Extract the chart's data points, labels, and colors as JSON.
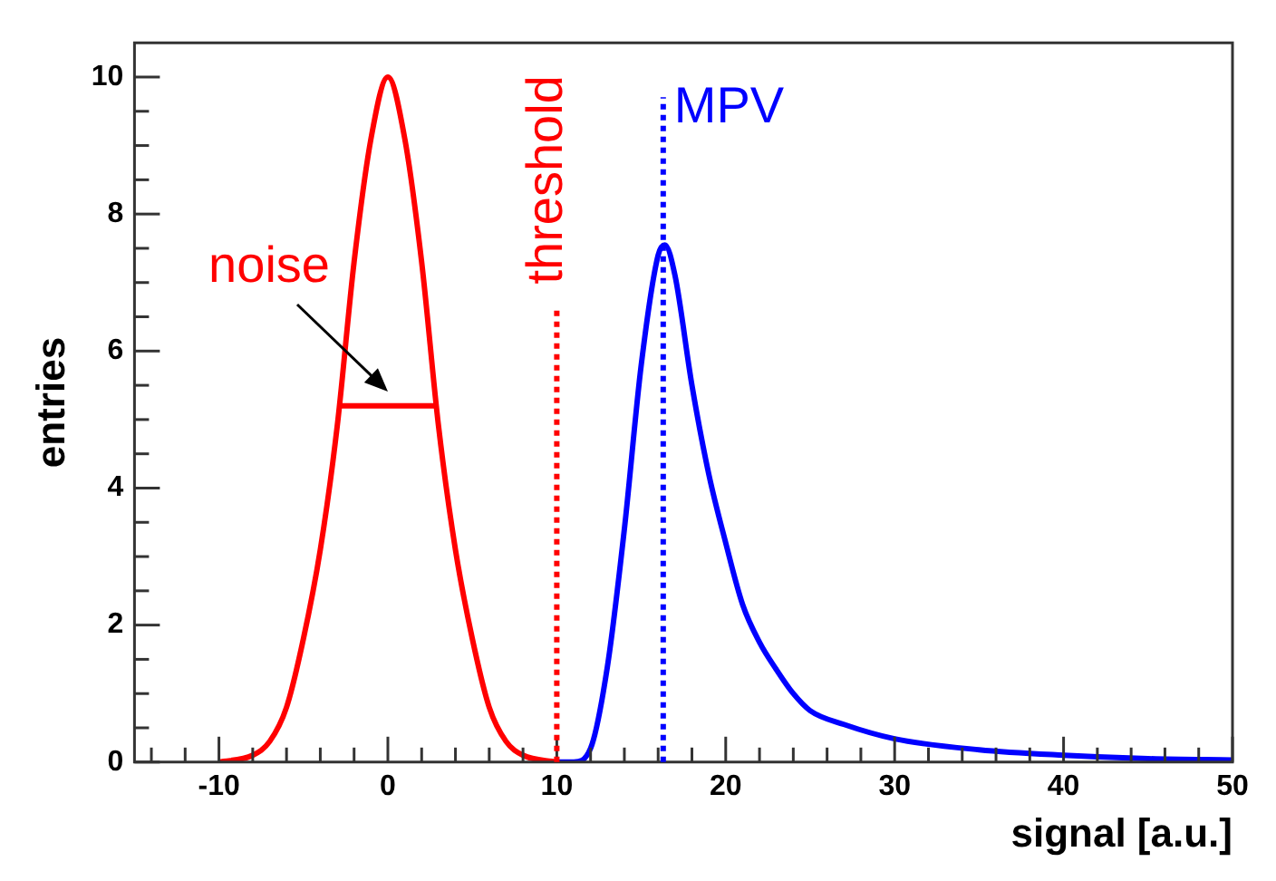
{
  "chart_data": {
    "type": "line",
    "xlabel": "signal [a.u.]",
    "ylabel": "entries",
    "xlim": [
      -15,
      50
    ],
    "ylim": [
      0,
      10.5
    ],
    "xticks": [
      {
        "value": -14,
        "label": null
      },
      {
        "value": -12,
        "label": null
      },
      -10,
      {
        "value": -8,
        "label": null
      },
      {
        "value": -6,
        "label": null
      },
      {
        "value": -4,
        "label": null
      },
      {
        "value": -2,
        "label": null
      },
      0,
      {
        "value": 2,
        "label": null
      },
      {
        "value": 4,
        "label": null
      },
      {
        "value": 6,
        "label": null
      },
      {
        "value": 8,
        "label": null
      },
      10,
      {
        "value": 12,
        "label": null
      },
      {
        "value": 14,
        "label": null
      },
      {
        "value": 16,
        "label": null
      },
      {
        "value": 18,
        "label": null
      },
      20,
      {
        "value": 22,
        "label": null
      },
      {
        "value": 24,
        "label": null
      },
      {
        "value": 26,
        "label": null
      },
      {
        "value": 28,
        "label": null
      },
      30,
      {
        "value": 32,
        "label": null
      },
      {
        "value": 34,
        "label": null
      },
      {
        "value": 36,
        "label": null
      },
      {
        "value": 38,
        "label": null
      },
      40,
      {
        "value": 42,
        "label": null
      },
      {
        "value": 44,
        "label": null
      },
      {
        "value": 46,
        "label": null
      },
      {
        "value": 48,
        "label": null
      },
      50
    ],
    "yticks": [
      0,
      {
        "value": 0.5,
        "label": null
      },
      {
        "value": 1,
        "label": null
      },
      {
        "value": 1.5,
        "label": null
      },
      2,
      {
        "value": 2.5,
        "label": null
      },
      {
        "value": 3,
        "label": null
      },
      {
        "value": 3.5,
        "label": null
      },
      4,
      {
        "value": 4.5,
        "label": null
      },
      {
        "value": 5,
        "label": null
      },
      {
        "value": 5.5,
        "label": null
      },
      6,
      {
        "value": 6.5,
        "label": null
      },
      {
        "value": 7,
        "label": null
      },
      {
        "value": 7.5,
        "label": null
      },
      8,
      {
        "value": 8.5,
        "label": null
      },
      {
        "value": 9,
        "label": null
      },
      {
        "value": 9.5,
        "label": null
      },
      10
    ],
    "grid": false,
    "legend": false,
    "marker": "none",
    "series": [
      {
        "color": "#ff0000",
        "x": [
          -10,
          -8,
          -7,
          -6,
          -5,
          -4,
          -3,
          -2,
          -1,
          0,
          1,
          2,
          3,
          4,
          5,
          6,
          7,
          8,
          10
        ],
        "values": [
          0,
          0.1,
          0.3,
          0.8,
          1.8,
          3.1,
          4.9,
          7.3,
          9.1,
          10,
          9.1,
          7.3,
          4.9,
          3.1,
          1.8,
          0.8,
          0.3,
          0.1,
          0
        ]
      },
      {
        "color": "#0000ff",
        "x": [
          10,
          11,
          12,
          13,
          14,
          15,
          16,
          16.4,
          17,
          18,
          19,
          20,
          21,
          22,
          23,
          24,
          25,
          27,
          30,
          35,
          40,
          45,
          50
        ],
        "values": [
          0,
          0,
          0.2,
          1.4,
          3.4,
          5.8,
          7.4,
          7.55,
          7.1,
          5.5,
          4.2,
          3.2,
          2.3,
          1.75,
          1.35,
          1.0,
          0.75,
          0.55,
          0.34,
          0.18,
          0.1,
          0.05,
          0.03
        ]
      },
      {
        "color": "#ff0000",
        "x": [
          -2.8,
          2.8
        ],
        "values": [
          5.2,
          5.2
        ]
      }
    ],
    "ref_lines": [
      {
        "axis": "x",
        "value": 10,
        "label": "threshold",
        "color": "#ff0000",
        "line_style": "dotted"
      },
      {
        "axis": "x",
        "value": 16.3,
        "label": "MPV",
        "color": "#0000ff",
        "line_style": "dotted"
      }
    ],
    "annotations": [
      {
        "text": "noise",
        "x": 0,
        "y": 5.2
      }
    ]
  }
}
